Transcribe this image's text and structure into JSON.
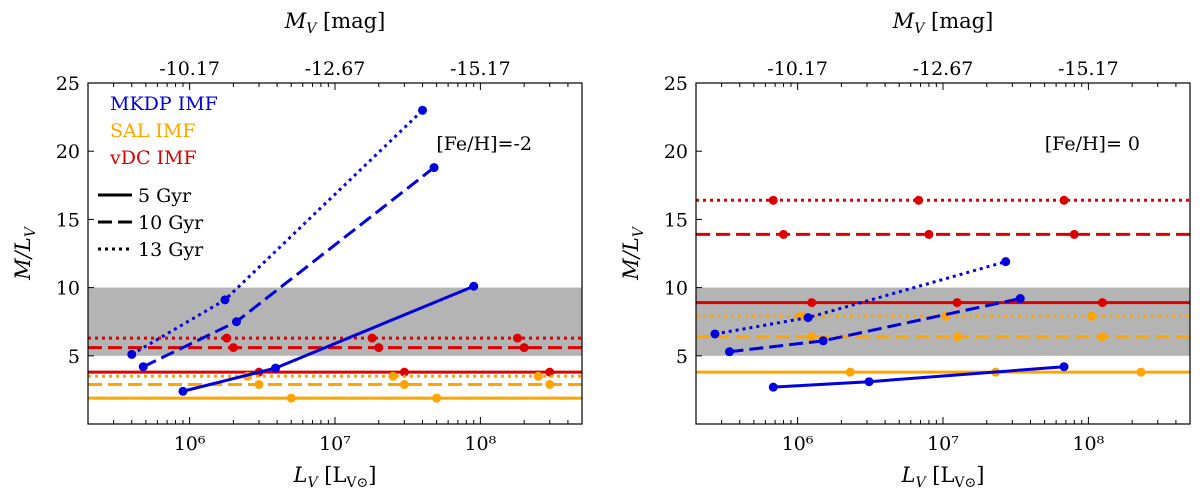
{
  "chart_data": [
    {
      "type": "line",
      "id": "left",
      "x_scale": "log",
      "xlim": [
        200000,
        500000000
      ],
      "ylim": [
        0,
        25
      ],
      "xlabel": "L_V [L_V⊙]",
      "ylabel": "M/L_V",
      "top_xlabel": "M_V [mag]",
      "x_ticks": [
        {
          "value": 1000000,
          "label": "10⁶"
        },
        {
          "value": 10000000,
          "label": "10⁷"
        },
        {
          "value": 100000000,
          "label": "10⁸"
        }
      ],
      "top_ticks": [
        {
          "value": 1000000,
          "label": "-10.17"
        },
        {
          "value": 10000000,
          "label": "-12.67"
        },
        {
          "value": 100000000,
          "label": "-15.17"
        }
      ],
      "y_ticks": [
        5,
        10,
        15,
        20,
        25
      ],
      "shaded_band": [
        5,
        10
      ],
      "annotation": "[Fe/H]=-2",
      "legend_imf": [
        {
          "label": "MKDP IMF",
          "color": "#0000dd"
        },
        {
          "label": "SAL IMF",
          "color": "#ffa500"
        },
        {
          "label": "vDC IMF",
          "color": "#dd0000"
        }
      ],
      "legend_age": [
        {
          "label": "5 Gyr",
          "style": "solid"
        },
        {
          "label": "10 Gyr",
          "style": "dashed"
        },
        {
          "label": "13 Gyr",
          "style": "dotted"
        }
      ],
      "series": [
        {
          "name": "vDC 5 Gyr",
          "imf": "vDC",
          "color": "#dd0000",
          "style": "solid",
          "line": [
            5.5,
            3.8
          ],
          "x": [
            3000000,
            30000000,
            300000000
          ],
          "y": [
            3.8,
            3.8,
            3.8
          ]
        },
        {
          "name": "vDC 10 Gyr",
          "imf": "vDC",
          "color": "#dd0000",
          "style": "dashed",
          "line": [
            5.5,
            5.6
          ],
          "x": [
            2000000,
            20000000,
            200000000
          ],
          "y": [
            5.6,
            5.6,
            5.6
          ]
        },
        {
          "name": "vDC 13 Gyr",
          "imf": "vDC",
          "color": "#dd0000",
          "style": "dotted",
          "line": [
            5.5,
            6.3
          ],
          "x": [
            1800000,
            18000000,
            180000000
          ],
          "y": [
            6.3,
            6.3,
            6.3
          ]
        },
        {
          "name": "SAL 5 Gyr",
          "imf": "SAL",
          "color": "#ffa500",
          "style": "solid",
          "line": [
            5.5,
            1.9
          ],
          "x": [
            5000000,
            50000000
          ],
          "y": [
            1.9,
            1.9
          ]
        },
        {
          "name": "SAL 10 Gyr",
          "imf": "SAL",
          "color": "#ffa500",
          "style": "dashed",
          "line": [
            5.5,
            2.9
          ],
          "x": [
            3000000,
            30000000,
            300000000
          ],
          "y": [
            2.9,
            2.9,
            2.9
          ]
        },
        {
          "name": "SAL 13 Gyr",
          "imf": "SAL",
          "color": "#ffa500",
          "style": "dotted",
          "line": [
            5.5,
            3.5
          ],
          "x": [
            2500000,
            25000000,
            250000000
          ],
          "y": [
            3.5,
            3.5,
            3.5
          ]
        },
        {
          "name": "MKDP 5 Gyr",
          "imf": "MKDP",
          "color": "#0000dd",
          "style": "solid",
          "x": [
            900000,
            3900000,
            90000000
          ],
          "y": [
            2.4,
            4.1,
            10.1
          ]
        },
        {
          "name": "MKDP 10 Gyr",
          "imf": "MKDP",
          "color": "#0000dd",
          "style": "dashed",
          "x": [
            480000,
            2100000,
            48000000
          ],
          "y": [
            4.2,
            7.5,
            18.8
          ]
        },
        {
          "name": "MKDP 13 Gyr",
          "imf": "MKDP",
          "color": "#0000dd",
          "style": "dotted",
          "x": [
            400000,
            1750000,
            40000000
          ],
          "y": [
            5.1,
            9.1,
            23.0
          ]
        }
      ]
    },
    {
      "type": "line",
      "id": "right",
      "x_scale": "log",
      "xlim": [
        200000,
        500000000
      ],
      "ylim": [
        0,
        25
      ],
      "xlabel": "L_V [L_V⊙]",
      "ylabel": "M/L_V",
      "top_xlabel": "M_V [mag]",
      "x_ticks": [
        {
          "value": 1000000,
          "label": "10⁶"
        },
        {
          "value": 10000000,
          "label": "10⁷"
        },
        {
          "value": 100000000,
          "label": "10⁸"
        }
      ],
      "top_ticks": [
        {
          "value": 1000000,
          "label": "-10.17"
        },
        {
          "value": 10000000,
          "label": "-12.67"
        },
        {
          "value": 100000000,
          "label": "-15.17"
        }
      ],
      "y_ticks": [
        5,
        10,
        15,
        20,
        25
      ],
      "shaded_band": [
        5,
        10
      ],
      "annotation": "[Fe/H]= 0",
      "series": [
        {
          "name": "vDC 5 Gyr",
          "imf": "vDC",
          "color": "#dd0000",
          "style": "solid",
          "line": [
            5.5,
            8.9
          ],
          "x": [
            1250000,
            12500000,
            125000000
          ],
          "y": [
            8.9,
            8.9,
            8.9
          ]
        },
        {
          "name": "vDC 10 Gyr",
          "imf": "vDC",
          "color": "#dd0000",
          "style": "dashed",
          "line": [
            5.5,
            13.9
          ],
          "x": [
            800000,
            8000000,
            80000000
          ],
          "y": [
            13.9,
            13.9,
            13.9
          ]
        },
        {
          "name": "vDC 13 Gyr",
          "imf": "vDC",
          "color": "#dd0000",
          "style": "dotted",
          "line": [
            5.5,
            16.4
          ],
          "x": [
            680000,
            6800000,
            68000000
          ],
          "y": [
            16.4,
            16.4,
            16.4
          ]
        },
        {
          "name": "SAL 5 Gyr",
          "imf": "SAL",
          "color": "#ffa500",
          "style": "solid",
          "line": [
            5.5,
            3.8
          ],
          "x": [
            2300000,
            23000000,
            230000000
          ],
          "y": [
            3.8,
            3.8,
            3.8
          ]
        },
        {
          "name": "SAL 10 Gyr",
          "imf": "SAL",
          "color": "#ffa500",
          "style": "dashed",
          "line": [
            5.5,
            6.4
          ],
          "x": [
            1250000,
            12500000,
            125000000
          ],
          "y": [
            6.4,
            6.4,
            6.4
          ]
        },
        {
          "name": "SAL 13 Gyr",
          "imf": "SAL",
          "color": "#ffa500",
          "style": "dotted",
          "line": [
            5.5,
            7.9
          ],
          "x": [
            1050000,
            10500000,
            105000000
          ],
          "y": [
            7.9,
            7.9,
            7.9
          ]
        },
        {
          "name": "MKDP 5 Gyr",
          "imf": "MKDP",
          "color": "#0000dd",
          "style": "solid",
          "x": [
            680000,
            3100000,
            68000000
          ],
          "y": [
            2.7,
            3.1,
            4.2
          ]
        },
        {
          "name": "MKDP 10 Gyr",
          "imf": "MKDP",
          "color": "#0000dd",
          "style": "dashed",
          "x": [
            340000,
            1500000,
            34000000
          ],
          "y": [
            5.3,
            6.1,
            9.2
          ]
        },
        {
          "name": "MKDP 13 Gyr",
          "imf": "MKDP",
          "color": "#0000dd",
          "style": "dotted",
          "x": [
            270000,
            1180000,
            27000000
          ],
          "y": [
            6.6,
            7.8,
            11.9
          ]
        }
      ]
    }
  ]
}
